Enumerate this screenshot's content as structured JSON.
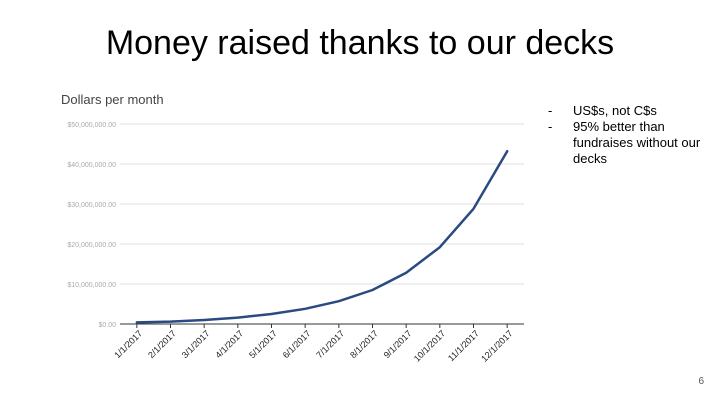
{
  "slide": {
    "title": "Money raised thanks to our decks",
    "page_number": "6",
    "notes": [
      {
        "bullet": "-",
        "text": "US$s, not C$s"
      },
      {
        "bullet": "-",
        "text": "95% better than fundraises without our decks"
      }
    ]
  },
  "chart_data": {
    "type": "line",
    "title": "Dollars per month",
    "xlabel": "",
    "ylabel": "",
    "categories": [
      "1/1/2017",
      "2/1/2017",
      "3/1/2017",
      "4/1/2017",
      "5/1/2017",
      "6/1/2017",
      "7/1/2017",
      "8/1/2017",
      "9/1/2017",
      "10/1/2017",
      "11/1/2017",
      "12/1/2017"
    ],
    "series": [
      {
        "name": "",
        "values": [
          400000,
          600000,
          1000000,
          1600000,
          2500000,
          3800000,
          5700000,
          8500000,
          12800000,
          19200000,
          28800000,
          43200000
        ]
      }
    ],
    "ylim": [
      0,
      50000000
    ],
    "yticks": [
      0,
      10000000,
      20000000,
      30000000,
      40000000,
      50000000
    ],
    "ytick_labels": [
      "$0.00",
      "$10,000,000.00",
      "$20,000,000.00",
      "$30,000,000.00",
      "$40,000,000.00",
      "$50,000,000.00"
    ],
    "grid": true,
    "colors": {
      "line": "#2a4a82",
      "grid": "#e0e0e0",
      "axis": "#333333",
      "tick_label": "#aaaaaa",
      "title": "#444444"
    }
  }
}
